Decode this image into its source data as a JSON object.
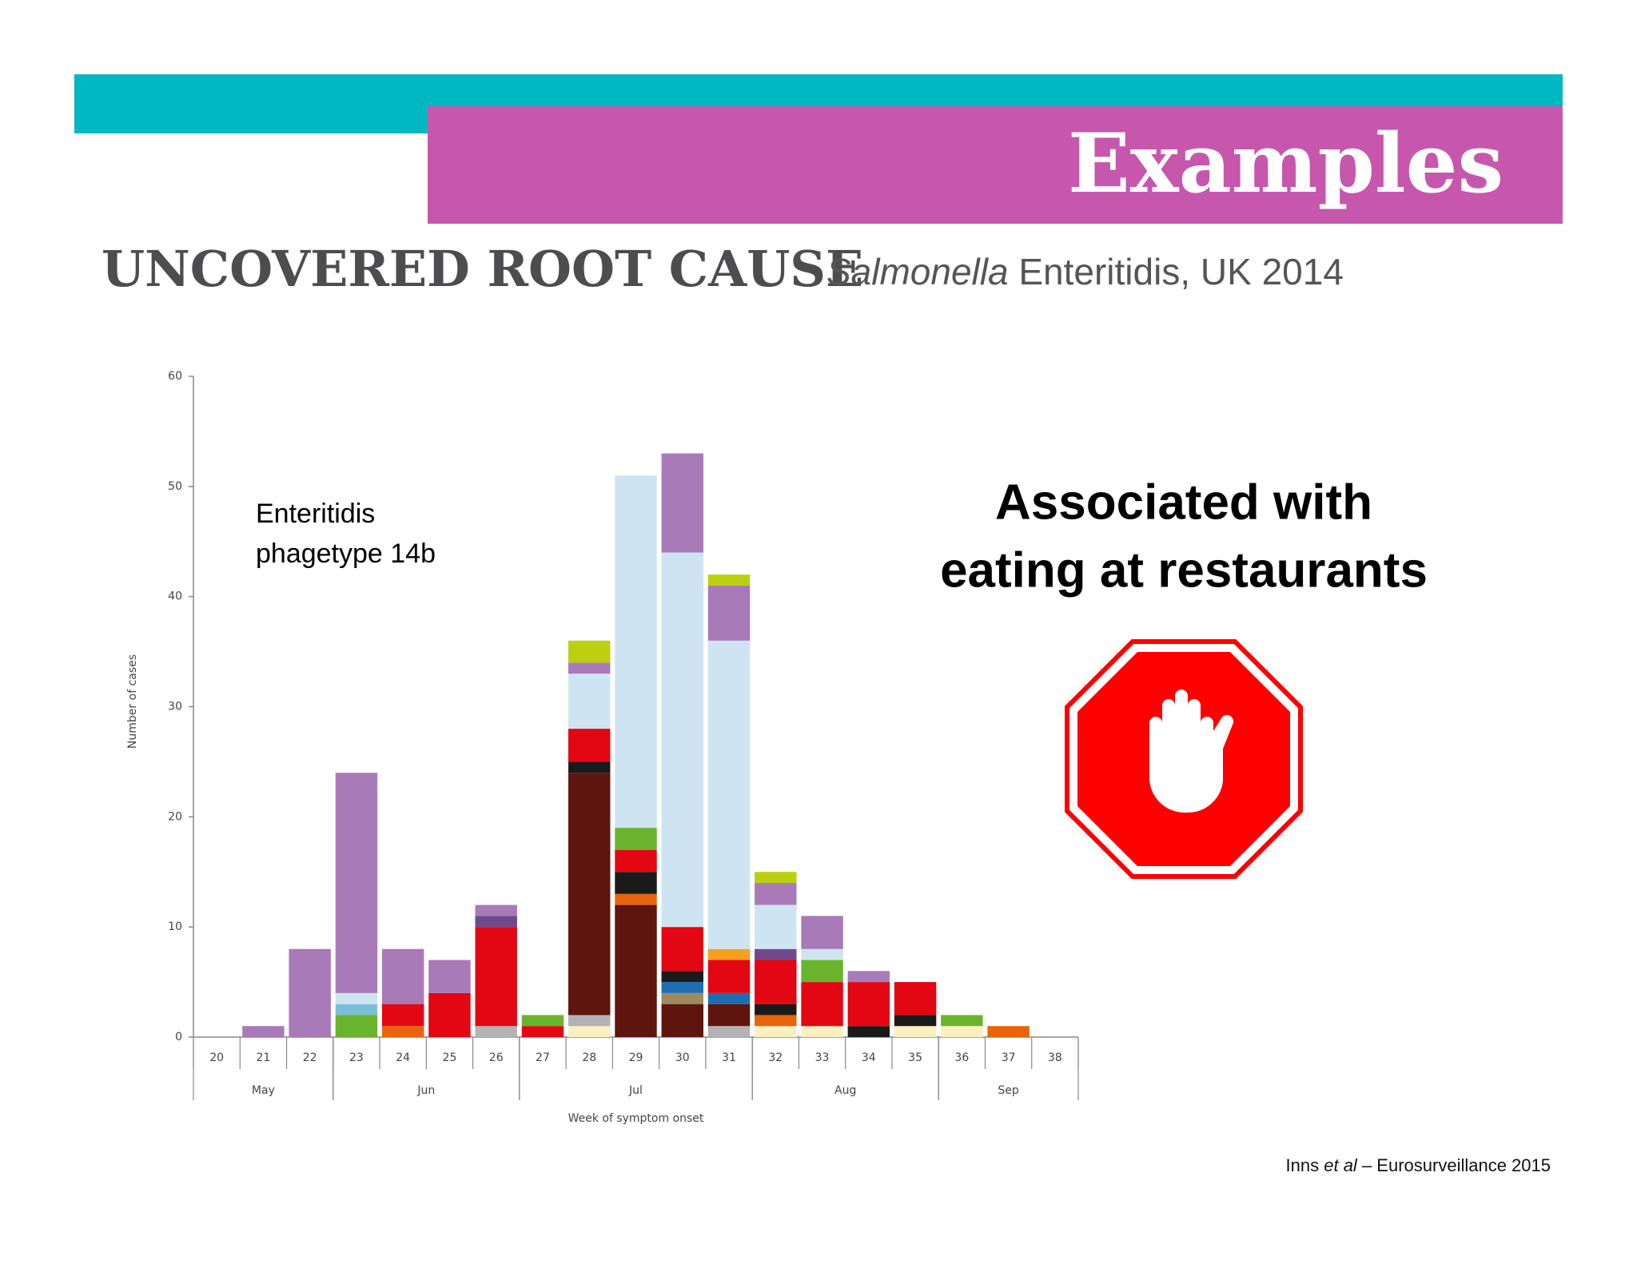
{
  "header": {
    "title": "Examples"
  },
  "subtitle": {
    "main": "UNCOVERED ROOT CAUSE",
    "italic": "Salmonella",
    "rest": "Enteritidis, UK 2014"
  },
  "callout": [
    "Associated with",
    "eating at restaurants"
  ],
  "citation": {
    "author": "Inns",
    "etal": "et al",
    "rest": "– Eurosurveillance 2015"
  },
  "chart_data": {
    "type": "stacked_bar",
    "x_label": "Week of symptom onset",
    "y_label": "Number of cases",
    "annotation": [
      "Enteritidis",
      "phagetype 14b"
    ],
    "categories": [
      "20",
      "21",
      "22",
      "23",
      "24",
      "25",
      "26",
      "27",
      "28",
      "29",
      "30",
      "31",
      "32",
      "33",
      "34",
      "35",
      "36",
      "37",
      "38"
    ],
    "month_groups": [
      {
        "label": "May",
        "span": 3
      },
      {
        "label": "Jun",
        "span": 4
      },
      {
        "label": "Jul",
        "span": 5
      },
      {
        "label": "Aug",
        "span": 4
      },
      {
        "label": "Sep",
        "span": 3
      }
    ],
    "ylim": [
      0,
      60
    ],
    "yticks": [
      0,
      10,
      20,
      30,
      40,
      50,
      60
    ],
    "series": [
      {
        "color": "#fdf0c0",
        "values": [
          0,
          0,
          0,
          0,
          0,
          0,
          0,
          0,
          1,
          0,
          0,
          0,
          1,
          1,
          0,
          1,
          1,
          0,
          0
        ]
      },
      {
        "color": "#b3b3b3",
        "values": [
          0,
          0,
          0,
          0,
          0,
          0,
          1,
          0,
          1,
          0,
          0,
          1,
          0,
          0,
          0,
          0,
          0,
          0,
          0
        ]
      },
      {
        "color": "#5e140f",
        "values": [
          0,
          0,
          0,
          0,
          0,
          0,
          0,
          0,
          22,
          12,
          3,
          2,
          0,
          0,
          0,
          0,
          0,
          0,
          0
        ]
      },
      {
        "color": "#a08a60",
        "values": [
          0,
          0,
          0,
          0,
          0,
          0,
          0,
          0,
          0,
          0,
          1,
          0,
          0,
          0,
          0,
          0,
          0,
          0,
          0
        ]
      },
      {
        "color": "#1f6db3",
        "values": [
          0,
          0,
          0,
          0,
          0,
          0,
          0,
          0,
          0,
          0,
          1,
          1,
          0,
          0,
          0,
          0,
          0,
          0,
          0
        ]
      },
      {
        "color": "#e8640c",
        "values": [
          0,
          0,
          0,
          0,
          1,
          0,
          0,
          0,
          0,
          1,
          0,
          0,
          1,
          0,
          0,
          0,
          0,
          1,
          0
        ]
      },
      {
        "color": "#1a1a1a",
        "values": [
          0,
          0,
          0,
          0,
          0,
          0,
          0,
          0,
          1,
          2,
          1,
          0,
          1,
          0,
          1,
          1,
          0,
          0,
          0
        ]
      },
      {
        "color": "#e30613",
        "values": [
          0,
          0,
          0,
          0,
          2,
          4,
          9,
          1,
          3,
          2,
          4,
          3,
          4,
          4,
          4,
          3,
          0,
          0,
          0
        ]
      },
      {
        "color": "#f4a21c",
        "values": [
          0,
          0,
          0,
          0,
          0,
          0,
          0,
          0,
          0,
          0,
          0,
          1,
          0,
          0,
          0,
          0,
          0,
          0,
          0
        ]
      },
      {
        "color": "#6ab42d",
        "values": [
          0,
          0,
          0,
          2,
          0,
          0,
          0,
          1,
          0,
          2,
          0,
          0,
          0,
          2,
          0,
          0,
          1,
          0,
          0
        ]
      },
      {
        "color": "#6e4a8c",
        "values": [
          0,
          0,
          0,
          0,
          0,
          0,
          1,
          0,
          0,
          0,
          0,
          0,
          1,
          0,
          0,
          0,
          0,
          0,
          0
        ]
      },
      {
        "color": "#7bbfd6",
        "values": [
          0,
          0,
          0,
          1,
          0,
          0,
          0,
          0,
          0,
          0,
          0,
          0,
          0,
          0,
          0,
          0,
          0,
          0,
          0
        ]
      },
      {
        "color": "#cfe4f2",
        "values": [
          0,
          0,
          0,
          1,
          0,
          0,
          0,
          0,
          5,
          32,
          34,
          28,
          4,
          1,
          0,
          0,
          0,
          0,
          0
        ]
      },
      {
        "color": "#a87ab8",
        "values": [
          0,
          1,
          8,
          20,
          5,
          3,
          1,
          0,
          1,
          0,
          9,
          5,
          2,
          3,
          1,
          0,
          0,
          0,
          0
        ]
      },
      {
        "color": "#bccf10",
        "values": [
          0,
          0,
          0,
          0,
          0,
          0,
          0,
          0,
          2,
          0,
          0,
          1,
          1,
          0,
          0,
          0,
          0,
          0,
          0
        ]
      }
    ]
  }
}
